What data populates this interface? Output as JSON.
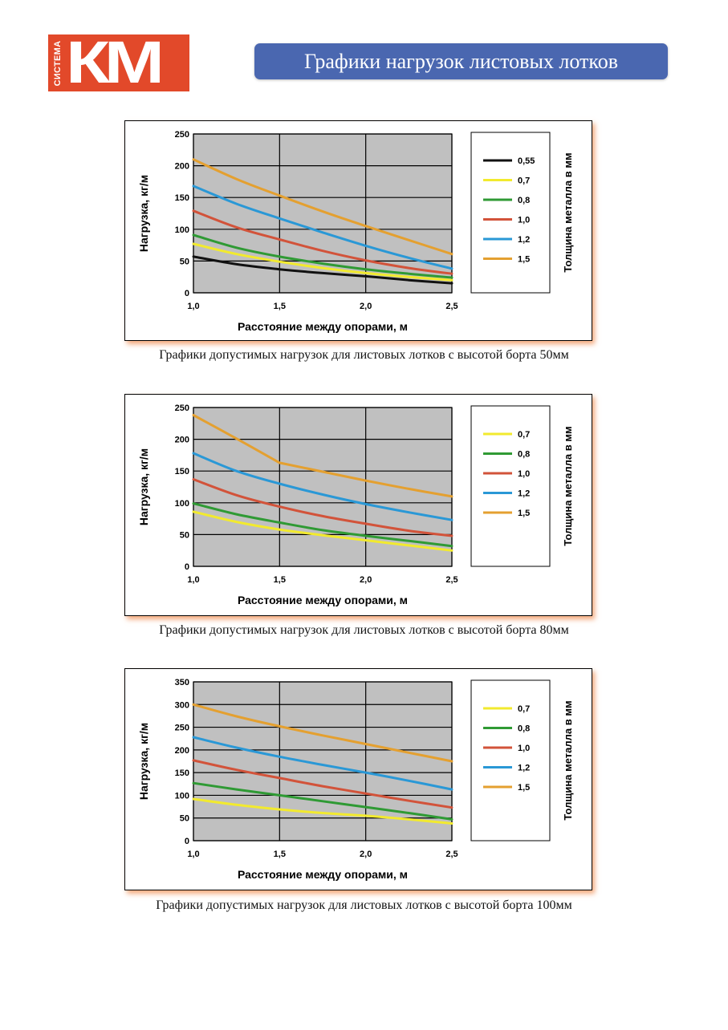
{
  "logo": {
    "small_text": "СИСТЕМА",
    "big_text": "КМ",
    "brand_color": "#e2492a"
  },
  "header": {
    "title": "Графики нагрузок листовых лотков",
    "color": "#4a67b0"
  },
  "series_colors": {
    "0,55": "#111111",
    "0,7": "#f2ea2e",
    "0,8": "#2f9a34",
    "1,0": "#d2533a",
    "1,2": "#2a98d6",
    "1,5": "#e4a030"
  },
  "chart_data": [
    {
      "type": "line",
      "title": "",
      "caption": "Графики допустимых нагрузок для листовых лотков с высотой борта 50мм",
      "xlabel": "Расстояние между опорами, м",
      "ylabel": "Нагрузка, кг/м",
      "legend_title": "Толщина металла в мм",
      "legend_position": "right",
      "grid": true,
      "xlim": [
        1.0,
        2.5
      ],
      "ylim": [
        0,
        250
      ],
      "x_ticks": [
        "1,0",
        "1,5",
        "2,0",
        "2,5"
      ],
      "x_tick_values": [
        1.0,
        1.5,
        2.0,
        2.5
      ],
      "y_ticks": [
        "0",
        "50",
        "100",
        "150",
        "200",
        "250"
      ],
      "y_tick_values": [
        0,
        50,
        100,
        150,
        200,
        250
      ],
      "x": [
        1.0,
        1.25,
        1.5,
        1.75,
        2.0,
        2.25,
        2.5
      ],
      "series": [
        {
          "name": "0,55",
          "values": [
            57,
            45,
            37,
            31,
            26,
            20,
            15
          ]
        },
        {
          "name": "0,7",
          "values": [
            77,
            61,
            49,
            39,
            31,
            25,
            20
          ]
        },
        {
          "name": "0,8",
          "values": [
            91,
            71,
            57,
            46,
            37,
            30,
            24
          ]
        },
        {
          "name": "1,0",
          "values": [
            129,
            103,
            84,
            66,
            51,
            39,
            30
          ]
        },
        {
          "name": "1,2",
          "values": [
            168,
            140,
            117,
            95,
            74,
            55,
            38
          ]
        },
        {
          "name": "1,5",
          "values": [
            210,
            179,
            153,
            128,
            105,
            83,
            61
          ]
        }
      ]
    },
    {
      "type": "line",
      "title": "",
      "caption": "Графики допустимых нагрузок для листовых лотков с высотой борта 80мм",
      "xlabel": "Расстояние между опорами, м",
      "ylabel": "Нагрузка, кг/м",
      "legend_title": "Толщина металла в мм",
      "legend_position": "right",
      "grid": true,
      "xlim": [
        1.0,
        2.5
      ],
      "ylim": [
        0,
        250
      ],
      "x_ticks": [
        "1,0",
        "1,5",
        "2,0",
        "2,5"
      ],
      "x_tick_values": [
        1.0,
        1.5,
        2.0,
        2.5
      ],
      "y_ticks": [
        "0",
        "50",
        "100",
        "150",
        "200",
        "250"
      ],
      "y_tick_values": [
        0,
        50,
        100,
        150,
        200,
        250
      ],
      "x": [
        1.0,
        1.25,
        1.5,
        1.75,
        2.0,
        2.25,
        2.5
      ],
      "series": [
        {
          "name": "0,7",
          "values": [
            86,
            70,
            58,
            49,
            41,
            33,
            25
          ]
        },
        {
          "name": "0,8",
          "values": [
            99,
            82,
            69,
            57,
            48,
            40,
            32
          ]
        },
        {
          "name": "1,0",
          "values": [
            137,
            112,
            94,
            79,
            67,
            56,
            48
          ]
        },
        {
          "name": "1,2",
          "values": [
            178,
            150,
            130,
            113,
            98,
            85,
            73
          ]
        },
        {
          "name": "1,5",
          "values": [
            238,
            201,
            163,
            149,
            135,
            122,
            110
          ]
        }
      ]
    },
    {
      "type": "line",
      "title": "",
      "caption": "Графики допустимых нагрузок для листовых лотков с высотой борта 100мм",
      "xlabel": "Расстояние между опорами, м",
      "ylabel": "Нагрузка, кг/м",
      "legend_title": "Толщина металла в мм",
      "legend_position": "right",
      "grid": true,
      "xlim": [
        1.0,
        2.5
      ],
      "ylim": [
        0,
        350
      ],
      "x_ticks": [
        "1,0",
        "1,5",
        "2,0",
        "2,5"
      ],
      "x_tick_values": [
        1.0,
        1.5,
        2.0,
        2.5
      ],
      "y_ticks": [
        "0",
        "50",
        "100",
        "150",
        "200",
        "250",
        "300",
        "350"
      ],
      "y_tick_values": [
        0,
        50,
        100,
        150,
        200,
        250,
        300,
        350
      ],
      "x": [
        1.0,
        1.25,
        1.5,
        1.75,
        2.0,
        2.25,
        2.5
      ],
      "series": [
        {
          "name": "0,7",
          "values": [
            92,
            79,
            69,
            61,
            55,
            47,
            38
          ]
        },
        {
          "name": "0,8",
          "values": [
            127,
            113,
            100,
            87,
            74,
            61,
            47
          ]
        },
        {
          "name": "1,0",
          "values": [
            177,
            156,
            138,
            120,
            104,
            88,
            73
          ]
        },
        {
          "name": "1,2",
          "values": [
            228,
            205,
            185,
            167,
            150,
            132,
            113
          ]
        },
        {
          "name": "1,5",
          "values": [
            300,
            274,
            252,
            232,
            213,
            194,
            175
          ]
        }
      ]
    }
  ]
}
